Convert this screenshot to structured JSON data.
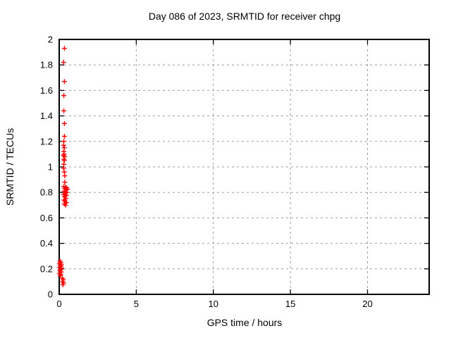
{
  "title": "Day 086 of 2023, SRMTID for receiver chpg",
  "colors": {
    "marker": "#ff0000",
    "grid": "#9e9e9e",
    "border": "#000000",
    "background": "#ffffff",
    "text": "#000000"
  },
  "chart_data": {
    "type": "scatter",
    "title": "Day 086 of 2023, SRMTID for receiver chpg",
    "xlabel": "GPS time / hours",
    "ylabel": "SRMTID / TECUs",
    "xlim": [
      0,
      24
    ],
    "ylim": [
      0,
      2
    ],
    "xticks": [
      0,
      5,
      10,
      15,
      20
    ],
    "yticks": [
      0,
      0.2,
      0.4,
      0.6,
      0.8,
      1,
      1.2,
      1.4,
      1.6,
      1.8,
      2
    ],
    "xtick_labels": [
      "0",
      "5",
      "10",
      "15",
      "20"
    ],
    "ytick_labels": [
      "0",
      "0.2",
      "0.4",
      "0.6",
      "0.8",
      "1",
      "1.2",
      "1.4",
      "1.6",
      "1.8",
      "2"
    ],
    "grid": true,
    "legend": "none",
    "marker": "plus",
    "series": [
      {
        "name": "SRMTID",
        "points": [
          [
            0.34,
            1.93
          ],
          [
            0.29,
            1.82
          ],
          [
            0.34,
            1.67
          ],
          [
            0.3,
            1.56
          ],
          [
            0.3,
            1.44
          ],
          [
            0.34,
            1.34
          ],
          [
            0.34,
            1.24
          ],
          [
            0.3,
            1.2
          ],
          [
            0.29,
            1.17
          ],
          [
            0.33,
            1.15
          ],
          [
            0.3,
            1.12
          ],
          [
            0.32,
            1.1
          ],
          [
            0.28,
            1.09
          ],
          [
            0.35,
            1.08
          ],
          [
            0.31,
            1.06
          ],
          [
            0.33,
            1.05
          ],
          [
            0.3,
            1.02
          ],
          [
            0.29,
            0.99
          ],
          [
            0.33,
            0.96
          ],
          [
            0.36,
            0.93
          ],
          [
            0.36,
            0.88
          ],
          [
            0.3,
            0.845
          ],
          [
            0.42,
            0.84
          ],
          [
            0.48,
            0.835
          ],
          [
            0.36,
            0.83
          ],
          [
            0.52,
            0.825
          ],
          [
            0.45,
            0.82
          ],
          [
            0.33,
            0.81
          ],
          [
            0.5,
            0.8
          ],
          [
            0.4,
            0.79
          ],
          [
            0.28,
            0.785
          ],
          [
            0.46,
            0.775
          ],
          [
            0.35,
            0.765
          ],
          [
            0.43,
            0.75
          ],
          [
            0.31,
            0.74
          ],
          [
            0.38,
            0.73
          ],
          [
            0.47,
            0.72
          ],
          [
            0.34,
            0.71
          ],
          [
            0.41,
            0.7
          ],
          [
            0.05,
            0.26
          ],
          [
            0.1,
            0.25
          ],
          [
            0.02,
            0.24
          ],
          [
            0.14,
            0.235
          ],
          [
            0.07,
            0.225
          ],
          [
            0.12,
            0.22
          ],
          [
            0.03,
            0.21
          ],
          [
            0.16,
            0.205
          ],
          [
            0.08,
            0.195
          ],
          [
            0.05,
            0.185
          ],
          [
            0.13,
            0.175
          ],
          [
            0.02,
            0.165
          ],
          [
            0.1,
            0.155
          ],
          [
            0.06,
            0.15
          ],
          [
            0.2,
            0.127
          ],
          [
            0.26,
            0.115
          ],
          [
            0.22,
            0.1
          ],
          [
            0.28,
            0.09
          ],
          [
            0.24,
            0.075
          ]
        ]
      }
    ]
  }
}
